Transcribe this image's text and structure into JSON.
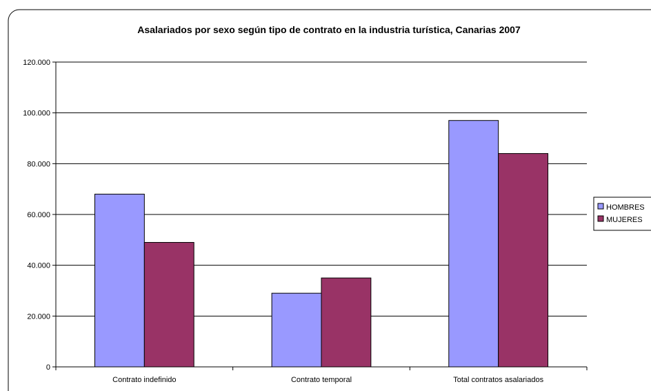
{
  "chart_data": {
    "type": "bar",
    "title": "Asalariados por sexo según tipo de contrato en la industria turística, Canarias 2007",
    "xlabel": "",
    "ylabel": "",
    "categories": [
      "Contrato indefinido",
      "Contrato temporal",
      "Total contratos asalariados"
    ],
    "series": [
      {
        "name": "HOMBRES",
        "color": "#9999FF",
        "values": [
          68000,
          29000,
          97000
        ]
      },
      {
        "name": "MUJERES",
        "color": "#993366",
        "values": [
          49000,
          35000,
          84000
        ]
      }
    ],
    "ylim": [
      0,
      120000
    ],
    "y_ticks": [
      {
        "value": 0,
        "label": "0"
      },
      {
        "value": 20000,
        "label": "20.000"
      },
      {
        "value": 40000,
        "label": "40.000"
      },
      {
        "value": 60000,
        "label": "60.000"
      },
      {
        "value": 80000,
        "label": "80.000"
      },
      {
        "value": 100000,
        "label": "100.000"
      },
      {
        "value": 120000,
        "label": "120.000"
      }
    ],
    "grid": true,
    "legend_position": "right"
  }
}
